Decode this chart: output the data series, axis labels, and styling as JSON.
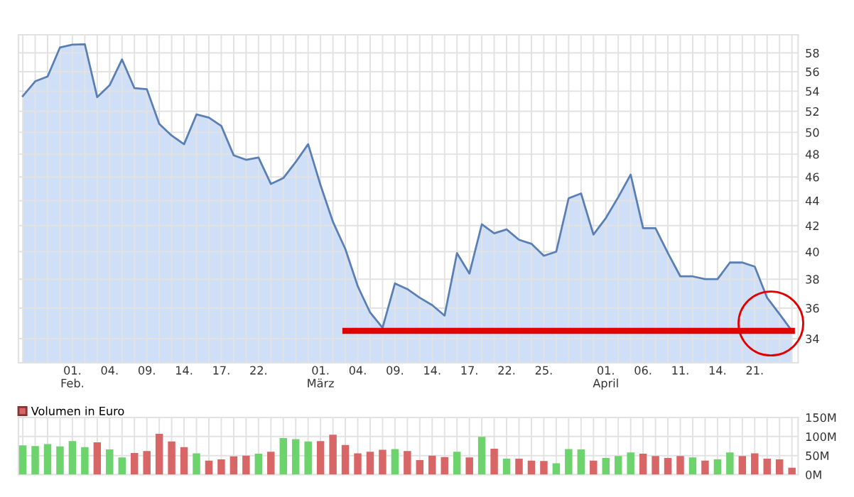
{
  "chart_data": [
    {
      "type": "area",
      "log": true,
      "grid": true,
      "legend": false,
      "categories": [
        null,
        null,
        null,
        null,
        "01.\nFeb.",
        null,
        null,
        "04.",
        null,
        null,
        "09.",
        null,
        null,
        "14.",
        null,
        null,
        "17.",
        null,
        null,
        "22.",
        null,
        null,
        null,
        null,
        "01.\nMärz",
        null,
        null,
        "04.",
        null,
        null,
        "09.",
        null,
        null,
        "14.",
        null,
        null,
        "17.",
        null,
        null,
        "22.",
        null,
        null,
        "25.",
        null,
        null,
        null,
        null,
        "01.\nApril",
        null,
        null,
        "06.",
        null,
        null,
        "11.",
        null,
        null,
        "14.",
        null,
        null,
        "21.",
        null,
        null,
        null
      ],
      "ylim": [
        32.5,
        60
      ],
      "yticks": [
        34,
        36,
        38,
        40,
        42,
        44,
        46,
        48,
        50,
        52,
        54,
        56,
        58
      ],
      "series": [
        {
          "color": "#5a7fb5",
          "values": [
            53.5,
            55.0,
            55.5,
            58.6,
            58.9,
            58.95,
            53.4,
            54.6,
            57.3,
            54.3,
            54.2,
            50.8,
            49.7,
            48.9,
            51.7,
            51.4,
            50.6,
            47.9,
            47.5,
            47.7,
            45.4,
            45.9,
            47.3,
            48.9,
            45.3,
            42.3,
            40.2,
            37.5,
            35.7,
            34.7,
            37.7,
            37.3,
            36.7,
            36.2,
            35.5,
            39.9,
            38.4,
            42.1,
            41.4,
            41.7,
            40.9,
            40.6,
            39.7,
            40.0,
            44.2,
            44.6,
            41.3,
            42.6,
            44.3,
            46.2,
            41.8,
            41.8,
            39.9,
            38.2,
            38.2,
            38.0,
            38.0,
            39.2,
            39.2,
            38.9,
            36.7,
            35.6,
            34.5
          ]
        },
        {
          "type": "line",
          "color": "#e00000",
          "values": [
            null,
            null,
            null,
            null,
            null,
            null,
            null,
            null,
            null,
            null,
            null,
            null,
            null,
            null,
            null,
            null,
            null,
            null,
            null,
            null,
            null,
            null,
            null,
            null,
            null,
            null,
            34.5,
            34.5,
            34.5,
            34.5,
            34.5,
            34.5,
            34.5,
            34.5,
            34.5,
            34.5,
            34.5,
            34.5,
            34.5,
            34.5,
            34.5,
            34.5,
            34.5,
            34.5,
            34.5,
            34.5,
            34.5,
            34.5,
            34.5,
            34.5,
            34.5,
            34.5,
            34.5,
            34.5,
            34.5,
            34.5,
            34.5,
            34.5,
            34.5,
            34.5,
            34.5,
            34.5,
            34.5
          ]
        }
      ]
    },
    {
      "type": "bar",
      "grid": true,
      "legend": "top left",
      "tick_labels": "y",
      "categories": [
        null,
        null,
        null,
        null,
        null,
        null,
        null,
        null,
        null,
        null,
        null,
        null,
        null,
        null,
        null,
        null,
        null,
        null,
        null,
        null,
        null,
        null,
        null,
        null,
        null,
        null,
        null,
        null,
        null,
        null,
        null,
        null,
        null,
        null,
        null,
        null,
        null,
        null,
        null,
        null,
        null,
        null,
        null,
        null,
        null,
        null,
        null,
        null,
        null,
        null,
        null,
        null,
        null,
        null,
        null,
        null,
        null,
        null,
        null,
        null,
        null,
        null,
        null
      ],
      "ylim": [
        0,
        150
      ],
      "yticks": [
        {
          "value": 0,
          "label": "0M"
        },
        {
          "value": 50,
          "label": "50M"
        },
        {
          "value": 100,
          "label": "100M"
        },
        {
          "value": 150,
          "label": "150M"
        }
      ],
      "series": [
        {
          "name": "Volumen in Euro",
          "color": "#d96666",
          "values": [
            77,
            75,
            80,
            74,
            88,
            72,
            85,
            66,
            45,
            57,
            62,
            107,
            87,
            72,
            56,
            37,
            40,
            48,
            50,
            55,
            60,
            96,
            93,
            87,
            88,
            105,
            78,
            56,
            60,
            65,
            67,
            62,
            38,
            50,
            46,
            60,
            45,
            99,
            68,
            42,
            42,
            37,
            36,
            30,
            67,
            66,
            37,
            44,
            49,
            58,
            55,
            49,
            44,
            49,
            45,
            37,
            40,
            58,
            49,
            56,
            42,
            40,
            18
          ],
          "colors": [
            "#6dd36d",
            "#6dd36d",
            "#6dd36d",
            "#6dd36d",
            "#6dd36d",
            "#6dd36d",
            "#d96666",
            "#6dd36d",
            "#6dd36d",
            "#d96666",
            "#d96666",
            "#d96666",
            "#d96666",
            "#d96666",
            "#6dd36d",
            "#d96666",
            "#d96666",
            "#d96666",
            "#d96666",
            "#6dd36d",
            "#d96666",
            "#6dd36d",
            "#6dd36d",
            "#6dd36d",
            "#d96666",
            "#d96666",
            "#d96666",
            "#d96666",
            "#d96666",
            "#d96666",
            "#6dd36d",
            "#d96666",
            "#d96666",
            "#d96666",
            "#d96666",
            "#6dd36d",
            "#d96666",
            "#6dd36d",
            "#d96666",
            "#6dd36d",
            "#d96666",
            "#d96666",
            "#d96666",
            "#6dd36d",
            "#6dd36d",
            "#6dd36d",
            "#d96666",
            "#6dd36d",
            "#6dd36d",
            "#6dd36d",
            "#d96666",
            "#d96666",
            "#d96666",
            "#d96666",
            "#6dd36d",
            "#d96666",
            "#6dd36d",
            "#6dd36d",
            "#d96666",
            "#d96666",
            "#d96666",
            "#d96666",
            "#d96666"
          ]
        }
      ]
    }
  ]
}
